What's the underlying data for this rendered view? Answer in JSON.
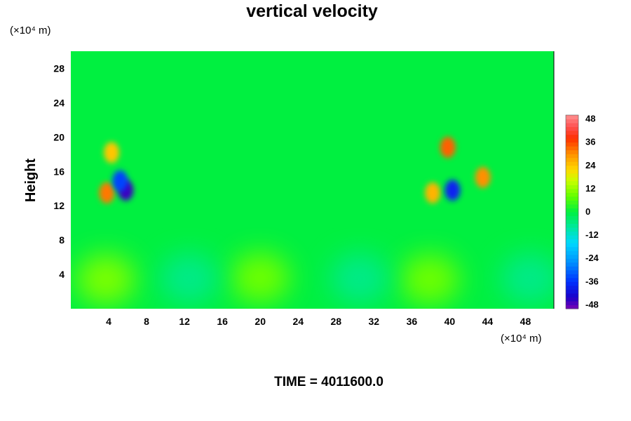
{
  "chart_data": {
    "type": "heatmap",
    "title": "vertical velocity",
    "xlabel": "",
    "ylabel": "Height",
    "x_unit_label": "(×10⁴ m)",
    "y_unit_label": "(×10⁴ m)",
    "xlim": [
      0,
      51
    ],
    "ylim": [
      0,
      30
    ],
    "x_ticks": [
      4,
      8,
      12,
      16,
      20,
      24,
      28,
      32,
      36,
      40,
      44,
      48
    ],
    "y_ticks": [
      4,
      8,
      12,
      16,
      20,
      24,
      28
    ],
    "colorbar": {
      "range": [
        -50,
        50
      ],
      "ticks": [
        48,
        36,
        24,
        12,
        0,
        -12,
        -24,
        -36,
        -48
      ]
    },
    "features": [
      {
        "x": 3.8,
        "y": 13.5,
        "value": 32
      },
      {
        "x": 5.8,
        "y": 13.8,
        "value": -46
      },
      {
        "x": 5.2,
        "y": 14.9,
        "value": -34
      },
      {
        "x": 4.3,
        "y": 18.2,
        "value": 24
      },
      {
        "x": 38.2,
        "y": 13.5,
        "value": 26
      },
      {
        "x": 40.3,
        "y": 13.8,
        "value": -38
      },
      {
        "x": 39.8,
        "y": 18.8,
        "value": 34
      },
      {
        "x": 43.5,
        "y": 15.3,
        "value": 30
      },
      {
        "x": 3.7,
        "y": 3.4,
        "value": 10
      },
      {
        "x": 20.0,
        "y": 3.6,
        "value": 9
      },
      {
        "x": 37.9,
        "y": 3.4,
        "value": 9
      },
      {
        "x": 12.5,
        "y": 3.5,
        "value": -6
      },
      {
        "x": 30.5,
        "y": 3.5,
        "value": -6
      },
      {
        "x": 48.5,
        "y": 3.5,
        "value": -6
      }
    ],
    "time_label": "TIME = 4011600.0"
  }
}
